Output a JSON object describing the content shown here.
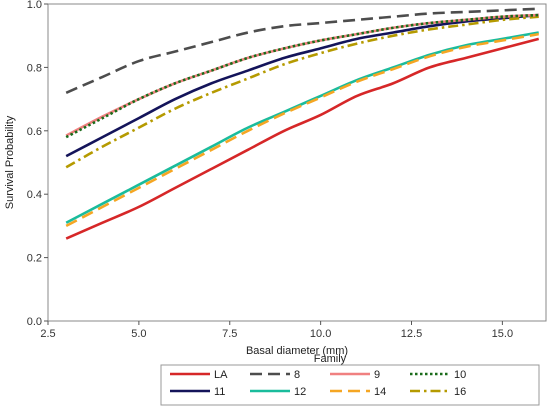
{
  "chart_data": {
    "type": "line",
    "xlabel": "Basal diameter (mm)",
    "ylabel": "Survival Probability",
    "xlim": [
      2.5,
      16.2
    ],
    "ylim": [
      0.0,
      1.0
    ],
    "x_ticks": [
      "2.5",
      "5.0",
      "7.5",
      "10.0",
      "12.5",
      "15.0"
    ],
    "y_ticks": [
      "0.0",
      "0.2",
      "0.4",
      "0.6",
      "0.8",
      "1.0"
    ],
    "grid": false,
    "legend_title": "Family",
    "legend_placement": "bottom-center",
    "series": [
      {
        "name": "LA",
        "color": "#d62728",
        "style": "solid",
        "x": [
          3,
          4,
          5,
          6,
          7,
          8,
          9,
          10,
          11,
          12,
          13,
          14,
          15,
          16
        ],
        "values": [
          0.26,
          0.31,
          0.36,
          0.42,
          0.48,
          0.54,
          0.6,
          0.65,
          0.71,
          0.75,
          0.8,
          0.83,
          0.86,
          0.89
        ]
      },
      {
        "name": "8",
        "color": "#4d4d4d",
        "style": "dash",
        "x": [
          3,
          4,
          5,
          6,
          7,
          8,
          9,
          10,
          11,
          12,
          13,
          14,
          15,
          16
        ],
        "values": [
          0.72,
          0.77,
          0.82,
          0.85,
          0.88,
          0.91,
          0.93,
          0.94,
          0.95,
          0.96,
          0.97,
          0.975,
          0.98,
          0.985
        ]
      },
      {
        "name": "9",
        "color": "#f08080",
        "style": "solid",
        "x": [
          3,
          4,
          5,
          6,
          7,
          8,
          9,
          10,
          11,
          12,
          13,
          14,
          15,
          16
        ],
        "values": [
          0.585,
          0.645,
          0.7,
          0.75,
          0.79,
          0.83,
          0.86,
          0.885,
          0.905,
          0.925,
          0.94,
          0.95,
          0.96,
          0.965
        ]
      },
      {
        "name": "10",
        "color": "#1a6b1a",
        "style": "dot",
        "x": [
          3,
          4,
          5,
          6,
          7,
          8,
          9,
          10,
          11,
          12,
          13,
          14,
          15,
          16
        ],
        "values": [
          0.58,
          0.64,
          0.7,
          0.75,
          0.79,
          0.83,
          0.86,
          0.885,
          0.905,
          0.925,
          0.94,
          0.95,
          0.96,
          0.965
        ]
      },
      {
        "name": "11",
        "color": "#14145a",
        "style": "solid",
        "x": [
          3,
          4,
          5,
          6,
          7,
          8,
          9,
          10,
          11,
          12,
          13,
          14,
          15,
          16
        ],
        "values": [
          0.52,
          0.58,
          0.64,
          0.7,
          0.75,
          0.79,
          0.83,
          0.86,
          0.89,
          0.91,
          0.93,
          0.945,
          0.955,
          0.965
        ]
      },
      {
        "name": "12",
        "color": "#1abc9c",
        "style": "solid",
        "x": [
          3,
          4,
          5,
          6,
          7,
          8,
          9,
          10,
          11,
          12,
          13,
          14,
          15,
          16
        ],
        "values": [
          0.31,
          0.37,
          0.43,
          0.49,
          0.55,
          0.61,
          0.66,
          0.71,
          0.76,
          0.8,
          0.84,
          0.87,
          0.89,
          0.91
        ]
      },
      {
        "name": "14",
        "color": "#f5a623",
        "style": "dash",
        "x": [
          3,
          4,
          5,
          6,
          7,
          8,
          9,
          10,
          11,
          12,
          13,
          14,
          15,
          16
        ],
        "values": [
          0.3,
          0.36,
          0.42,
          0.48,
          0.54,
          0.6,
          0.655,
          0.705,
          0.755,
          0.795,
          0.835,
          0.865,
          0.885,
          0.905
        ]
      },
      {
        "name": "16",
        "color": "#b59a00",
        "style": "dashdot",
        "x": [
          3,
          4,
          5,
          6,
          7,
          8,
          9,
          10,
          11,
          12,
          13,
          14,
          15,
          16
        ],
        "values": [
          0.485,
          0.55,
          0.61,
          0.67,
          0.72,
          0.765,
          0.81,
          0.845,
          0.875,
          0.9,
          0.92,
          0.935,
          0.95,
          0.96
        ]
      }
    ],
    "legend_order": [
      [
        "LA",
        "8",
        "9",
        "10"
      ],
      [
        "11",
        "12",
        "14",
        "16"
      ]
    ]
  }
}
